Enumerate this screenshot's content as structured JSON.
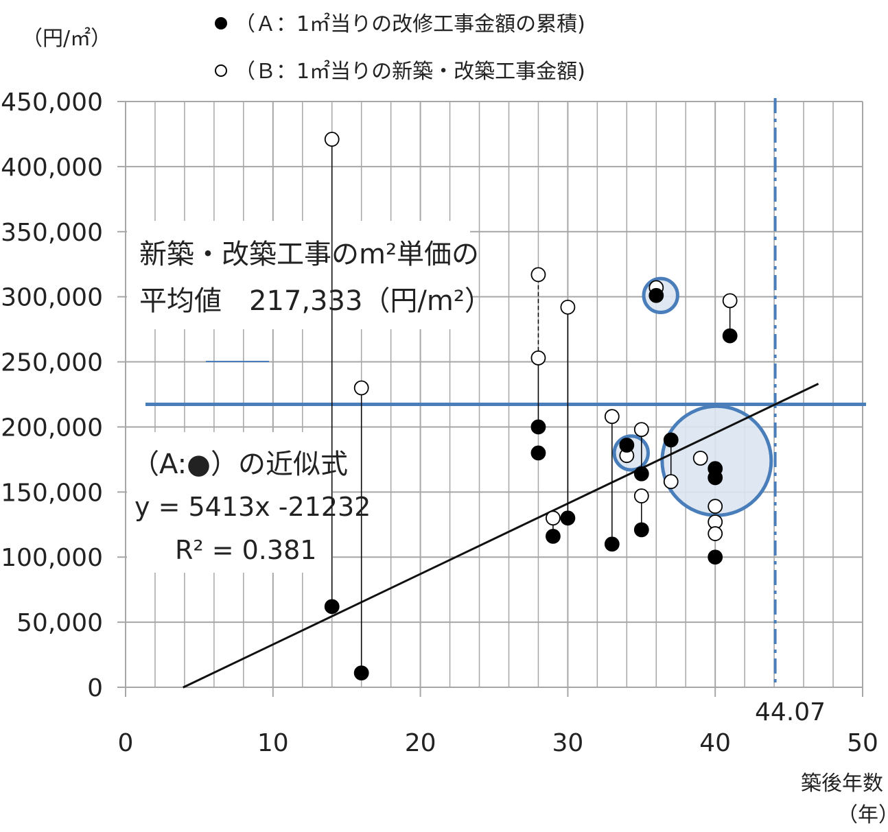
{
  "chart_data": {
    "type": "scatter",
    "y_unit": "（円/㎡）",
    "xlabel": "築後年数",
    "x_unit": "（年）",
    "xlim": [
      0,
      50
    ],
    "ylim": [
      0,
      450000
    ],
    "x_ticks": [
      0,
      10,
      20,
      30,
      40,
      50
    ],
    "x_tick_labels": [
      "0",
      "10",
      "20",
      "30",
      "40",
      "50"
    ],
    "y_ticks": [
      0,
      50000,
      100000,
      150000,
      200000,
      250000,
      300000,
      350000,
      400000,
      450000
    ],
    "y_tick_labels": [
      "0",
      "50,000",
      "100,000",
      "150,000",
      "200,000",
      "250,000",
      "300,000",
      "350,000",
      "400,000",
      "450,000"
    ],
    "grid": true,
    "legend_position": "top",
    "series": [
      {
        "name": "（Ａ：1㎡当りの改修工事金額の累積)",
        "marker": "filled",
        "color": "#000000",
        "points": [
          [
            14,
            62000
          ],
          [
            16,
            11000
          ],
          [
            28,
            200000
          ],
          [
            28,
            180000
          ],
          [
            29,
            116000
          ],
          [
            30,
            130000
          ],
          [
            33,
            110000
          ],
          [
            34,
            186000
          ],
          [
            35,
            164000
          ],
          [
            35,
            121000
          ],
          [
            36,
            301000
          ],
          [
            37,
            190000
          ],
          [
            40,
            168000
          ],
          [
            40,
            161000
          ],
          [
            40,
            100000
          ],
          [
            41,
            270000
          ]
        ]
      },
      {
        "name": "（Ｂ：1㎡当りの新築・改築工事金額)",
        "marker": "hollow",
        "color": "#000000",
        "points": [
          [
            14,
            421000
          ],
          [
            16,
            230000
          ],
          [
            28,
            317000
          ],
          [
            28,
            253000
          ],
          [
            29,
            130000
          ],
          [
            30,
            292000
          ],
          [
            33,
            208000
          ],
          [
            34,
            178000
          ],
          [
            35,
            198000
          ],
          [
            35,
            147000
          ],
          [
            36,
            307000
          ],
          [
            37,
            158000
          ],
          [
            39,
            176000
          ],
          [
            40,
            139000
          ],
          [
            40,
            127000
          ],
          [
            40,
            118000
          ],
          [
            41,
            297000
          ]
        ]
      }
    ],
    "connectors": [
      {
        "x": 14,
        "from": 62000,
        "to": 421000,
        "style": "solid"
      },
      {
        "x": 16,
        "from": 11000,
        "to": 230000,
        "style": "solid"
      },
      {
        "x": 28,
        "from": 200000,
        "to": 253000,
        "style": "solid"
      },
      {
        "x": 28,
        "from": 253000,
        "to": 317000,
        "style": "dashed"
      },
      {
        "x": 29,
        "from": 116000,
        "to": 130000,
        "style": "solid"
      },
      {
        "x": 30,
        "from": 130000,
        "to": 292000,
        "style": "solid"
      },
      {
        "x": 33,
        "from": 110000,
        "to": 208000,
        "style": "solid"
      },
      {
        "x": 35,
        "from": 121000,
        "to": 147000,
        "style": "solid"
      },
      {
        "x": 35,
        "from": 164000,
        "to": 198000,
        "style": "solid"
      },
      {
        "x": 37,
        "from": 158000,
        "to": 190000,
        "style": "solid"
      },
      {
        "x": 41,
        "from": 270000,
        "to": 297000,
        "style": "solid"
      }
    ],
    "trendline": {
      "slope": 5413,
      "intercept": -21232,
      "x_range": [
        3.9,
        47
      ],
      "color": "#111111"
    },
    "average_line": {
      "value": 217333,
      "color": "#4a7ebb",
      "label_line1": "新築・改築工事のm²単価の",
      "label_line2": "平均値　217,333（円/m²）"
    },
    "equation_text": {
      "line1": "（A:●）の近似式",
      "line2": "y = 5413x -21232",
      "line3": "R² = 0.381"
    },
    "vertical_marker": {
      "x": 44.07,
      "label": "44.07",
      "color": "#4a7ebb",
      "style": "dash-dot"
    },
    "highlight_circles": [
      {
        "x": 36.3,
        "y": 301000,
        "r_years": 1.15
      },
      {
        "x": 34.3,
        "y": 180000,
        "r_years": 1.15
      },
      {
        "x": 40.1,
        "y": 174000,
        "r_years": 3.7
      }
    ],
    "colors": {
      "grid": "#a6a6a6",
      "accent": "#4a7ebb",
      "highlight_fill": "#dbe5f1"
    }
  }
}
